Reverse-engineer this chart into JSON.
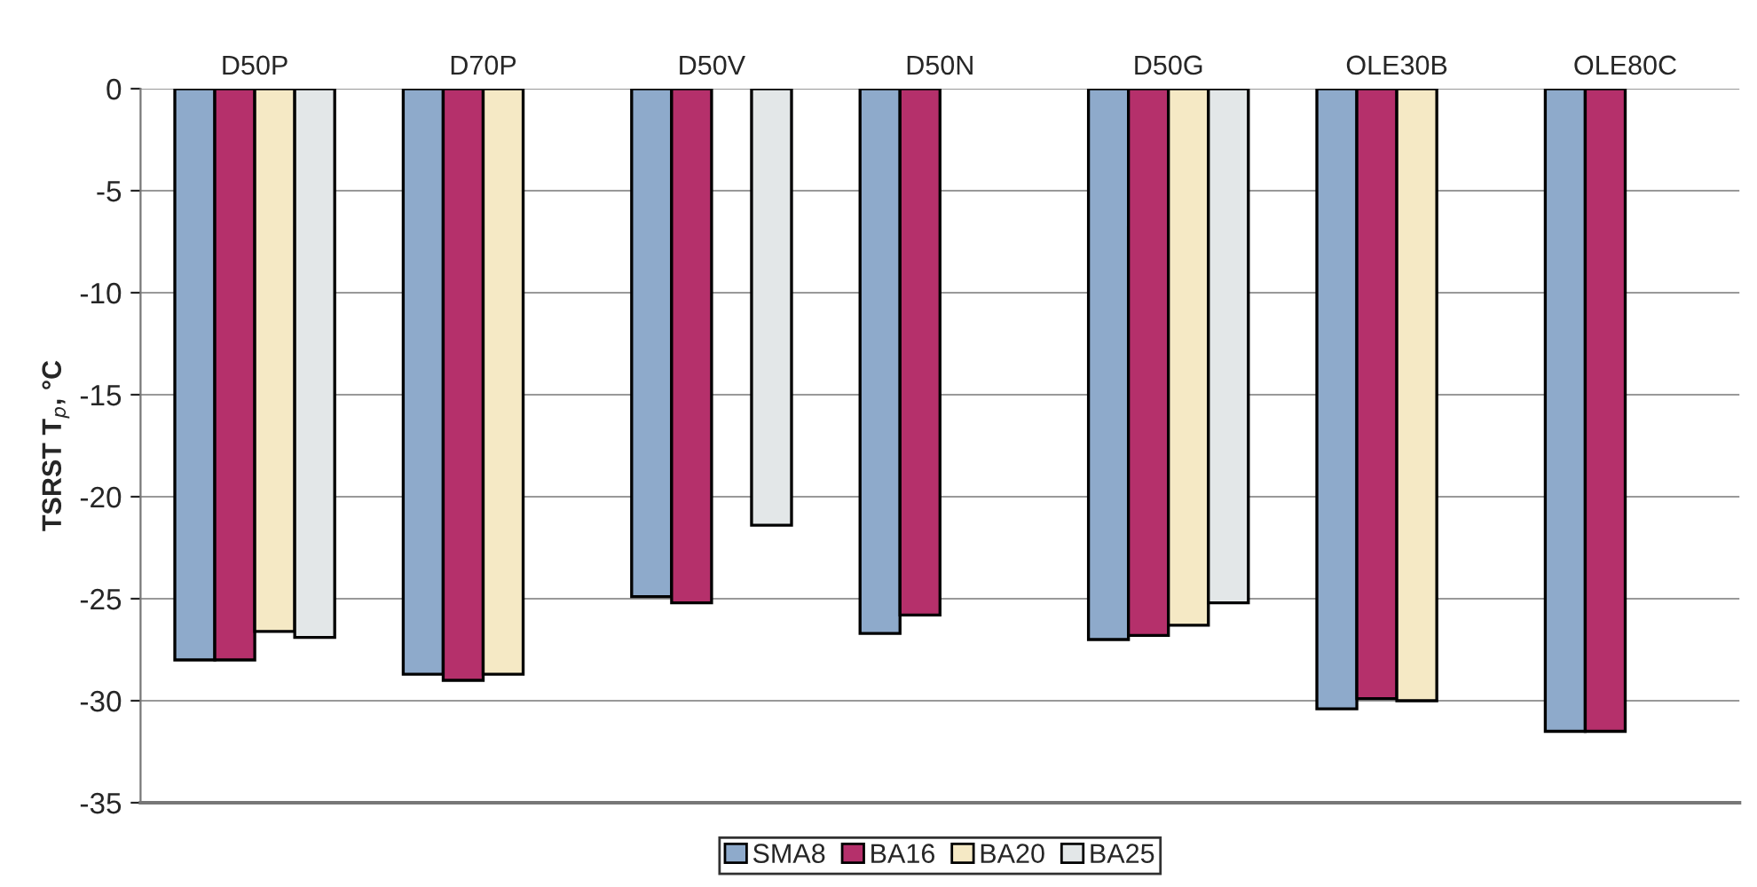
{
  "chart_data": {
    "type": "bar",
    "ylabel": "TSRST T$_{p}$, °C",
    "categories": [
      "D50P",
      "D70P",
      "D50V",
      "D50N",
      "D50G",
      "OLE30B",
      "OLE80C"
    ],
    "series": [
      {
        "name": "SMA8",
        "color": "#8eaacb",
        "values": [
          -28.0,
          -28.7,
          -24.9,
          -26.7,
          -27.0,
          -30.4,
          -31.5
        ]
      },
      {
        "name": "BA16",
        "color": "#b5306b",
        "values": [
          -28.0,
          -29.0,
          -25.2,
          -25.8,
          -26.8,
          -29.9,
          -31.5
        ]
      },
      {
        "name": "BA20",
        "color": "#f5e9c5",
        "values": [
          -26.6,
          -28.7,
          null,
          null,
          -26.3,
          -30.0,
          null
        ]
      },
      {
        "name": "BA25",
        "color": "#e3e7e8",
        "values": [
          -26.9,
          null,
          -21.4,
          null,
          -25.2,
          null,
          null
        ]
      }
    ],
    "ylim": [
      -35,
      0
    ],
    "yticks": [
      -35,
      -30,
      -25,
      -20,
      -15,
      -10,
      -5,
      0
    ],
    "grid": "y",
    "legend": "bottom"
  }
}
